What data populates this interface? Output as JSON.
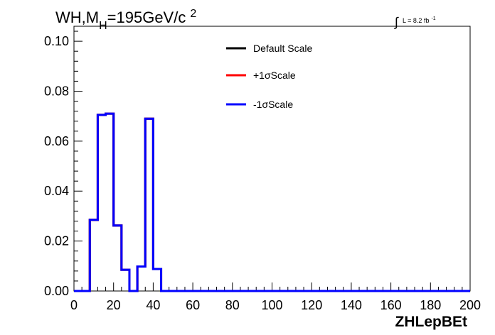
{
  "chart_data": {
    "type": "line",
    "title_main": "WH,M",
    "title_sub": "H",
    "title_rest": "=195GeV/c",
    "title_sup": "2",
    "lumi_label": "L = 8.2 fb",
    "lumi_sup": "-1",
    "xlabel": "ZHLepBEt",
    "xlim": [
      0,
      200
    ],
    "ylim": [
      0,
      0.106
    ],
    "x_ticks": [
      0,
      20,
      40,
      60,
      80,
      100,
      120,
      140,
      160,
      180,
      200
    ],
    "x_tick_labels": [
      "0",
      "20",
      "40",
      "60",
      "80",
      "100",
      "120",
      "140",
      "160",
      "180",
      "200"
    ],
    "y_ticks": [
      0,
      0.02,
      0.04,
      0.06,
      0.08,
      0.1
    ],
    "y_tick_labels": [
      "0.00",
      "0.02",
      "0.04",
      "0.06",
      "0.08",
      "0.10"
    ],
    "bin_edges": [
      0,
      4,
      8,
      12,
      16,
      20,
      24,
      28,
      32,
      36,
      40,
      44,
      48,
      52,
      56,
      60,
      64,
      68,
      72,
      76,
      80,
      84,
      88,
      92,
      96,
      100,
      104,
      108,
      112,
      116,
      120,
      124,
      128,
      132,
      136,
      140,
      144,
      148,
      152,
      156,
      160,
      164,
      168,
      172,
      176,
      180,
      184,
      188,
      192,
      196,
      200
    ],
    "series": [
      {
        "name": "Default Scale",
        "color": "#000000",
        "values": [
          0,
          0,
          0.0285,
          0.0705,
          0.071,
          0.0262,
          0.0085,
          0,
          0.0098,
          0.069,
          0.0088,
          0,
          0,
          0,
          0,
          0,
          0,
          0,
          0,
          0,
          0,
          0,
          0,
          0,
          0,
          0,
          0,
          0,
          0,
          0,
          0,
          0,
          0,
          0,
          0,
          0,
          0,
          0,
          0,
          0,
          0,
          0,
          0,
          0,
          0,
          0,
          0,
          0,
          0,
          0
        ]
      },
      {
        "name": "+1σScale",
        "color": "#ff0000",
        "values": [
          0,
          0,
          0.0285,
          0.0705,
          0.071,
          0.0262,
          0.0085,
          0,
          0.0098,
          0.069,
          0.0088,
          0,
          0,
          0,
          0,
          0,
          0,
          0,
          0,
          0,
          0,
          0,
          0,
          0,
          0,
          0,
          0,
          0,
          0,
          0,
          0,
          0,
          0,
          0,
          0,
          0,
          0,
          0,
          0,
          0,
          0,
          0,
          0,
          0,
          0,
          0,
          0,
          0,
          0,
          0
        ]
      },
      {
        "name": "-1σScale",
        "color": "#0000ff",
        "values": [
          0,
          0,
          0.0285,
          0.0705,
          0.071,
          0.0262,
          0.0085,
          0,
          0.0098,
          0.069,
          0.0088,
          0,
          0,
          0,
          0,
          0,
          0,
          0,
          0,
          0,
          0,
          0,
          0,
          0,
          0,
          0,
          0,
          0,
          0,
          0,
          0,
          0,
          0,
          0,
          0,
          0,
          0,
          0,
          0,
          0,
          0,
          0,
          0,
          0,
          0,
          0,
          0,
          0,
          0,
          0
        ]
      }
    ],
    "legend_position": "top-center",
    "grid": false
  }
}
